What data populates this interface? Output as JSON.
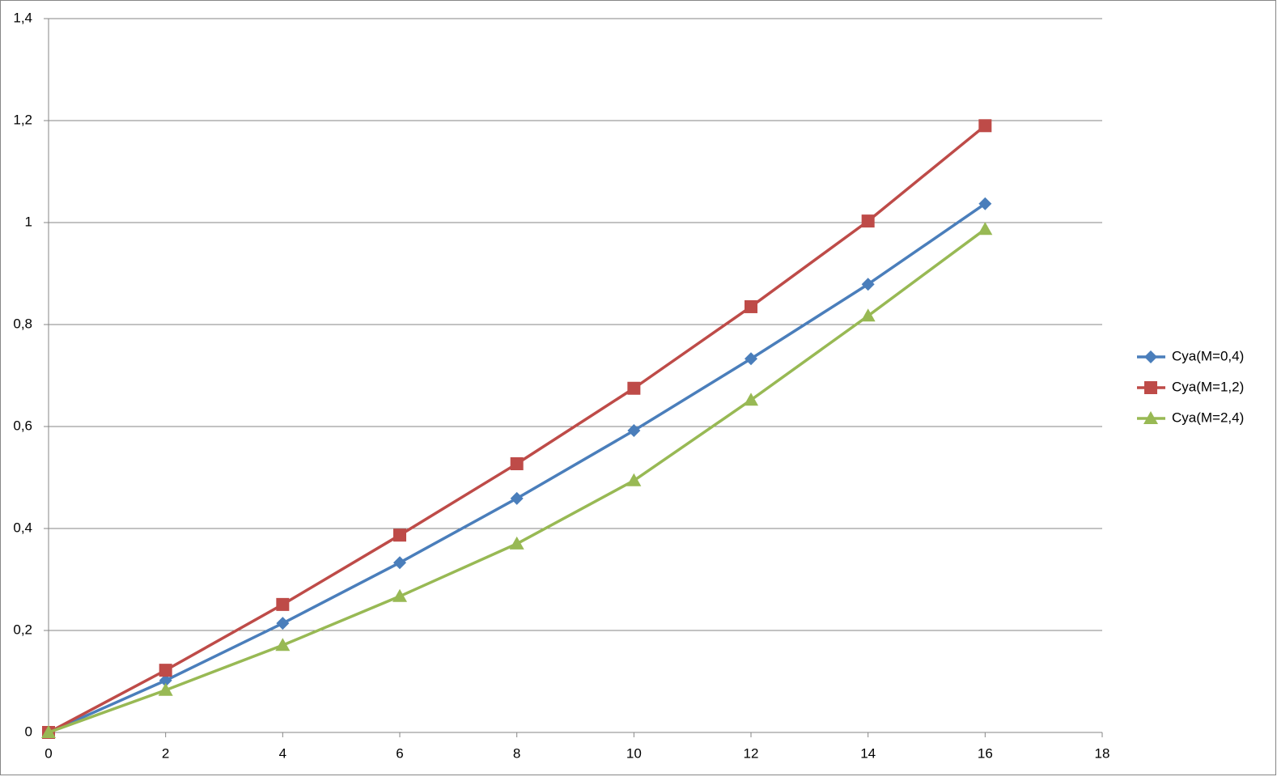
{
  "chart_data": {
    "type": "line",
    "x": [
      0,
      2,
      4,
      6,
      8,
      10,
      12,
      14,
      16
    ],
    "series": [
      {
        "name": "Cya(M=0,4)",
        "color": "#4a7ebb",
        "marker": "diamond",
        "values": [
          0,
          0.102,
          0.214,
          0.333,
          0.459,
          0.592,
          0.733,
          0.879,
          1.037
        ]
      },
      {
        "name": "Cya(M=1,2)",
        "color": "#be4b48",
        "marker": "square",
        "values": [
          0,
          0.122,
          0.251,
          0.387,
          0.527,
          0.675,
          0.835,
          1.003,
          1.19
        ]
      },
      {
        "name": "Cya(M=2,4)",
        "color": "#98b954",
        "marker": "triangle",
        "values": [
          0,
          0.083,
          0.171,
          0.267,
          0.37,
          0.494,
          0.652,
          0.817,
          0.987
        ]
      }
    ],
    "xlim": [
      0,
      18
    ],
    "xticks": [
      0,
      2,
      4,
      6,
      8,
      10,
      12,
      14,
      16,
      18
    ],
    "ylim": [
      0,
      1.4
    ],
    "yticks": [
      0,
      {
        "value": 0.2,
        "label": "0,2"
      },
      {
        "value": 0.4,
        "label": "0,4"
      },
      {
        "value": 0.6,
        "label": "0,6"
      },
      {
        "value": 0.8,
        "label": "0,8"
      },
      1,
      {
        "value": 1.2,
        "label": "1,2"
      },
      {
        "value": 1.4,
        "label": "1,4"
      }
    ],
    "grid": true,
    "legend": "right"
  }
}
